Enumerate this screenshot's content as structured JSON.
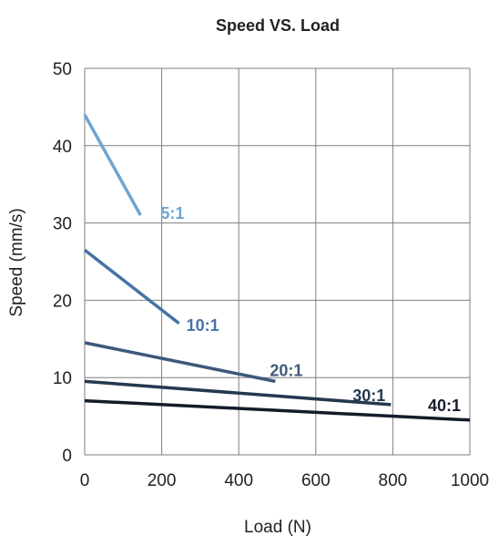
{
  "chart_data": {
    "type": "line",
    "title": "Speed VS. Load",
    "xlabel": "Load (N)",
    "ylabel": "Speed (mm/s)",
    "xlim": [
      0,
      1000
    ],
    "ylim": [
      0,
      50
    ],
    "xticks": [
      0,
      200,
      400,
      600,
      800,
      1000
    ],
    "yticks": [
      0,
      10,
      20,
      30,
      40,
      50
    ],
    "grid": true,
    "legend": "inline labels at line ends",
    "series": [
      {
        "name": "5:1",
        "color": "#6fa5d2",
        "x": [
          0,
          145
        ],
        "y": [
          44,
          31
        ]
      },
      {
        "name": "10:1",
        "color": "#4673a7",
        "x": [
          0,
          245
        ],
        "y": [
          26.5,
          17
        ]
      },
      {
        "name": "20:1",
        "color": "#3e587a",
        "x": [
          0,
          495
        ],
        "y": [
          14.5,
          9.5
        ]
      },
      {
        "name": "30:1",
        "color": "#253850",
        "x": [
          0,
          795
        ],
        "y": [
          9.5,
          6.5
        ]
      },
      {
        "name": "40:1",
        "color": "#141c2a",
        "x": [
          0,
          1000
        ],
        "y": [
          7,
          4.5
        ]
      }
    ]
  }
}
